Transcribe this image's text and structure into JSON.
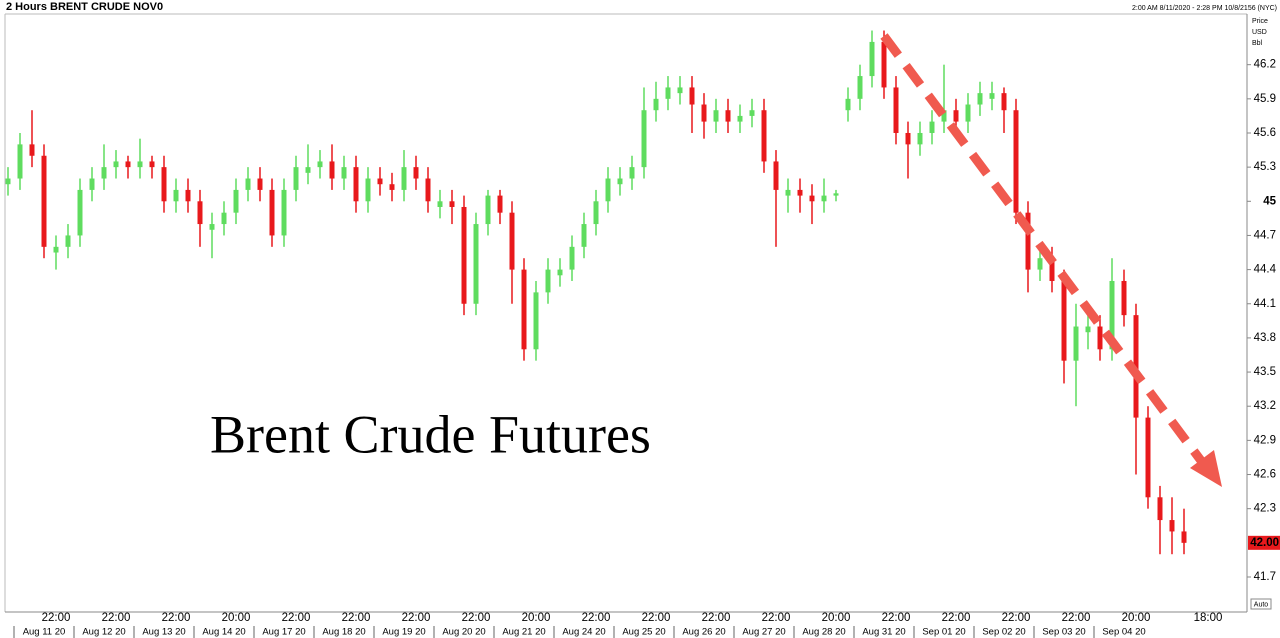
{
  "chart_data": {
    "type": "candlestick",
    "header": "2 Hours BRENT CRUDE NOV0",
    "range_text": "2:00 AM 8/11/2020 - 2:28 PM 10/8/2156 (NYC)",
    "axis_label": [
      "Price",
      "USD",
      "Bbl"
    ],
    "scale_button": "Auto",
    "annotation": "Brent Crude Futures",
    "up_color": "#5fdc5f",
    "down_color": "#e8191c",
    "ylim": [
      41.41,
      46.61
    ],
    "yticks": [
      41.7,
      42.3,
      42.6,
      42.9,
      43.2,
      43.5,
      43.8,
      44.1,
      44.4,
      44.7,
      45,
      45.3,
      45.6,
      45.9,
      46.2
    ],
    "last_price": {
      "value": 42,
      "label": "42.00"
    },
    "time_labels": [
      null,
      null,
      null,
      null,
      "22:00",
      null,
      null,
      null,
      null,
      "22:00",
      null,
      null,
      null,
      null,
      "22:00",
      null,
      null,
      null,
      null,
      "20:00",
      null,
      null,
      null,
      null,
      "22:00",
      null,
      null,
      null,
      null,
      "22:00",
      null,
      null,
      null,
      null,
      "22:00",
      null,
      null,
      null,
      null,
      "22:00",
      null,
      null,
      null,
      null,
      "20:00",
      null,
      null,
      null,
      null,
      "22:00",
      null,
      null,
      null,
      null,
      "22:00",
      null,
      null,
      null,
      null,
      "22:00",
      null,
      null,
      null,
      null,
      "22:00",
      null,
      null,
      null,
      null,
      "20:00",
      null,
      null,
      null,
      null,
      "22:00",
      null,
      null,
      null,
      null,
      "22:00",
      null,
      null,
      null,
      null,
      "22:00",
      null,
      null,
      null,
      null,
      "22:00",
      null,
      null,
      null,
      null,
      "20:00",
      null,
      null,
      null,
      null,
      null,
      "18:00"
    ],
    "date_labels": [
      null,
      null,
      null,
      "Aug 11 20",
      null,
      null,
      null,
      null,
      "Aug 12 20",
      null,
      null,
      null,
      null,
      "Aug 13 20",
      null,
      null,
      null,
      null,
      "Aug 14 20",
      null,
      null,
      null,
      null,
      "Aug 17 20",
      null,
      null,
      null,
      null,
      "Aug 18 20",
      null,
      null,
      null,
      null,
      "Aug 19 20",
      null,
      null,
      null,
      null,
      "Aug 20 20",
      null,
      null,
      null,
      null,
      "Aug 21 20",
      null,
      null,
      null,
      null,
      "Aug 24 20",
      null,
      null,
      null,
      null,
      "Aug 25 20",
      null,
      null,
      null,
      null,
      "Aug 26 20",
      null,
      null,
      null,
      null,
      "Aug 27 20",
      null,
      null,
      null,
      null,
      "Aug 28 20",
      null,
      null,
      null,
      null,
      "Aug 31 20",
      null,
      null,
      null,
      null,
      "Sep 01 20",
      null,
      null,
      null,
      null,
      "Sep 02 20",
      null,
      null,
      null,
      null,
      "Sep 03 20",
      null,
      null,
      null,
      null,
      "Sep 04 20",
      null,
      null,
      null,
      null,
      null,
      null,
      null
    ],
    "open": [
      45.15,
      45.2,
      45.5,
      45.4,
      44.55,
      44.6,
      44.7,
      45.1,
      45.2,
      45.3,
      45.35,
      45.3,
      45.35,
      45.3,
      45.0,
      45.1,
      45.0,
      44.75,
      44.8,
      44.9,
      45.1,
      45.2,
      45.1,
      44.7,
      45.1,
      45.25,
      45.3,
      45.35,
      45.2,
      45.3,
      45.0,
      45.2,
      45.15,
      45.1,
      45.3,
      45.2,
      44.95,
      45.0,
      44.95,
      44.1,
      44.8,
      45.05,
      44.9,
      44.4,
      43.7,
      44.2,
      44.35,
      44.4,
      44.6,
      44.8,
      45.0,
      45.15,
      45.2,
      45.3,
      45.8,
      45.9,
      45.95,
      46.0,
      45.85,
      45.7,
      45.8,
      45.7,
      45.75,
      45.8,
      45.35,
      45.05,
      45.1,
      45.05,
      45.0,
      45.05,
      45.8,
      45.9,
      46.1,
      46.4,
      46.0,
      45.6,
      45.5,
      45.6,
      45.7,
      45.8,
      45.7,
      45.85,
      45.9,
      45.95,
      45.8,
      44.9,
      44.4,
      44.5,
      44.3,
      43.6,
      43.85,
      43.9,
      43.7,
      44.3,
      44.0,
      43.1,
      42.4,
      42.2,
      42.1,
      null,
      null
    ],
    "high": [
      45.3,
      45.6,
      45.8,
      45.5,
      44.7,
      44.8,
      45.2,
      45.3,
      45.5,
      45.45,
      45.4,
      45.55,
      45.4,
      45.4,
      45.2,
      45.2,
      45.1,
      44.9,
      45.0,
      45.2,
      45.3,
      45.3,
      45.2,
      45.2,
      45.4,
      45.5,
      45.45,
      45.5,
      45.4,
      45.4,
      45.3,
      45.3,
      45.25,
      45.45,
      45.4,
      45.3,
      45.1,
      45.1,
      45.05,
      44.9,
      45.1,
      45.1,
      45.0,
      44.5,
      44.3,
      44.5,
      44.5,
      44.7,
      44.9,
      45.1,
      45.3,
      45.3,
      45.4,
      46.0,
      46.05,
      46.1,
      46.1,
      46.1,
      45.95,
      45.9,
      45.9,
      45.85,
      45.9,
      45.9,
      45.45,
      45.2,
      45.2,
      45.15,
      45.2,
      45.1,
      46.0,
      46.2,
      46.5,
      46.5,
      46.1,
      45.7,
      45.7,
      45.8,
      46.2,
      45.9,
      45.95,
      46.05,
      46.05,
      46.0,
      45.9,
      45.0,
      44.6,
      44.6,
      44.4,
      44.1,
      44.1,
      44.0,
      44.5,
      44.4,
      44.1,
      43.2,
      42.5,
      42.4,
      42.3,
      null,
      null
    ],
    "low": [
      45.05,
      45.1,
      45.3,
      44.5,
      44.4,
      44.5,
      44.6,
      45.0,
      45.1,
      45.2,
      45.2,
      45.2,
      45.2,
      44.9,
      44.9,
      44.9,
      44.6,
      44.5,
      44.7,
      44.8,
      45.0,
      45.0,
      44.6,
      44.6,
      45.0,
      45.15,
      45.2,
      45.1,
      45.1,
      44.9,
      44.9,
      45.05,
      45.0,
      45.0,
      45.1,
      44.9,
      44.85,
      44.8,
      44.0,
      44.0,
      44.7,
      44.8,
      44.1,
      43.6,
      43.6,
      44.1,
      44.25,
      44.3,
      44.5,
      44.7,
      44.9,
      45.05,
      45.1,
      45.2,
      45.7,
      45.8,
      45.85,
      45.6,
      45.55,
      45.6,
      45.6,
      45.6,
      45.65,
      45.25,
      44.6,
      44.9,
      44.9,
      44.8,
      44.9,
      45.0,
      45.7,
      45.8,
      46.0,
      45.9,
      45.5,
      45.2,
      45.4,
      45.5,
      45.6,
      45.6,
      45.6,
      45.75,
      45.8,
      45.6,
      44.8,
      44.2,
      44.3,
      44.2,
      43.4,
      43.2,
      43.7,
      43.6,
      43.6,
      43.9,
      42.6,
      42.3,
      41.9,
      41.9,
      41.9,
      null,
      null
    ],
    "close": [
      45.2,
      45.5,
      45.4,
      44.6,
      44.6,
      44.7,
      45.1,
      45.2,
      45.3,
      45.35,
      45.3,
      45.35,
      45.3,
      45.0,
      45.1,
      45.0,
      44.8,
      44.8,
      44.9,
      45.1,
      45.2,
      45.1,
      44.7,
      45.1,
      45.3,
      45.3,
      45.35,
      45.2,
      45.3,
      45.0,
      45.2,
      45.15,
      45.1,
      45.3,
      45.2,
      45.0,
      45.0,
      44.95,
      44.1,
      44.8,
      45.05,
      44.9,
      44.4,
      43.7,
      44.2,
      44.4,
      44.4,
      44.6,
      44.8,
      45.0,
      45.2,
      45.2,
      45.3,
      45.8,
      45.9,
      46.0,
      46.0,
      45.85,
      45.7,
      45.8,
      45.7,
      45.75,
      45.8,
      45.35,
      45.1,
      45.1,
      45.05,
      45.0,
      45.05,
      45.07,
      45.9,
      46.1,
      46.4,
      46.0,
      45.6,
      45.5,
      45.6,
      45.7,
      45.8,
      45.7,
      45.85,
      45.95,
      45.95,
      45.8,
      44.9,
      44.4,
      44.5,
      44.3,
      43.6,
      43.9,
      43.9,
      43.7,
      44.3,
      44.0,
      43.1,
      42.4,
      42.2,
      42.1,
      42.0,
      null,
      null
    ]
  }
}
